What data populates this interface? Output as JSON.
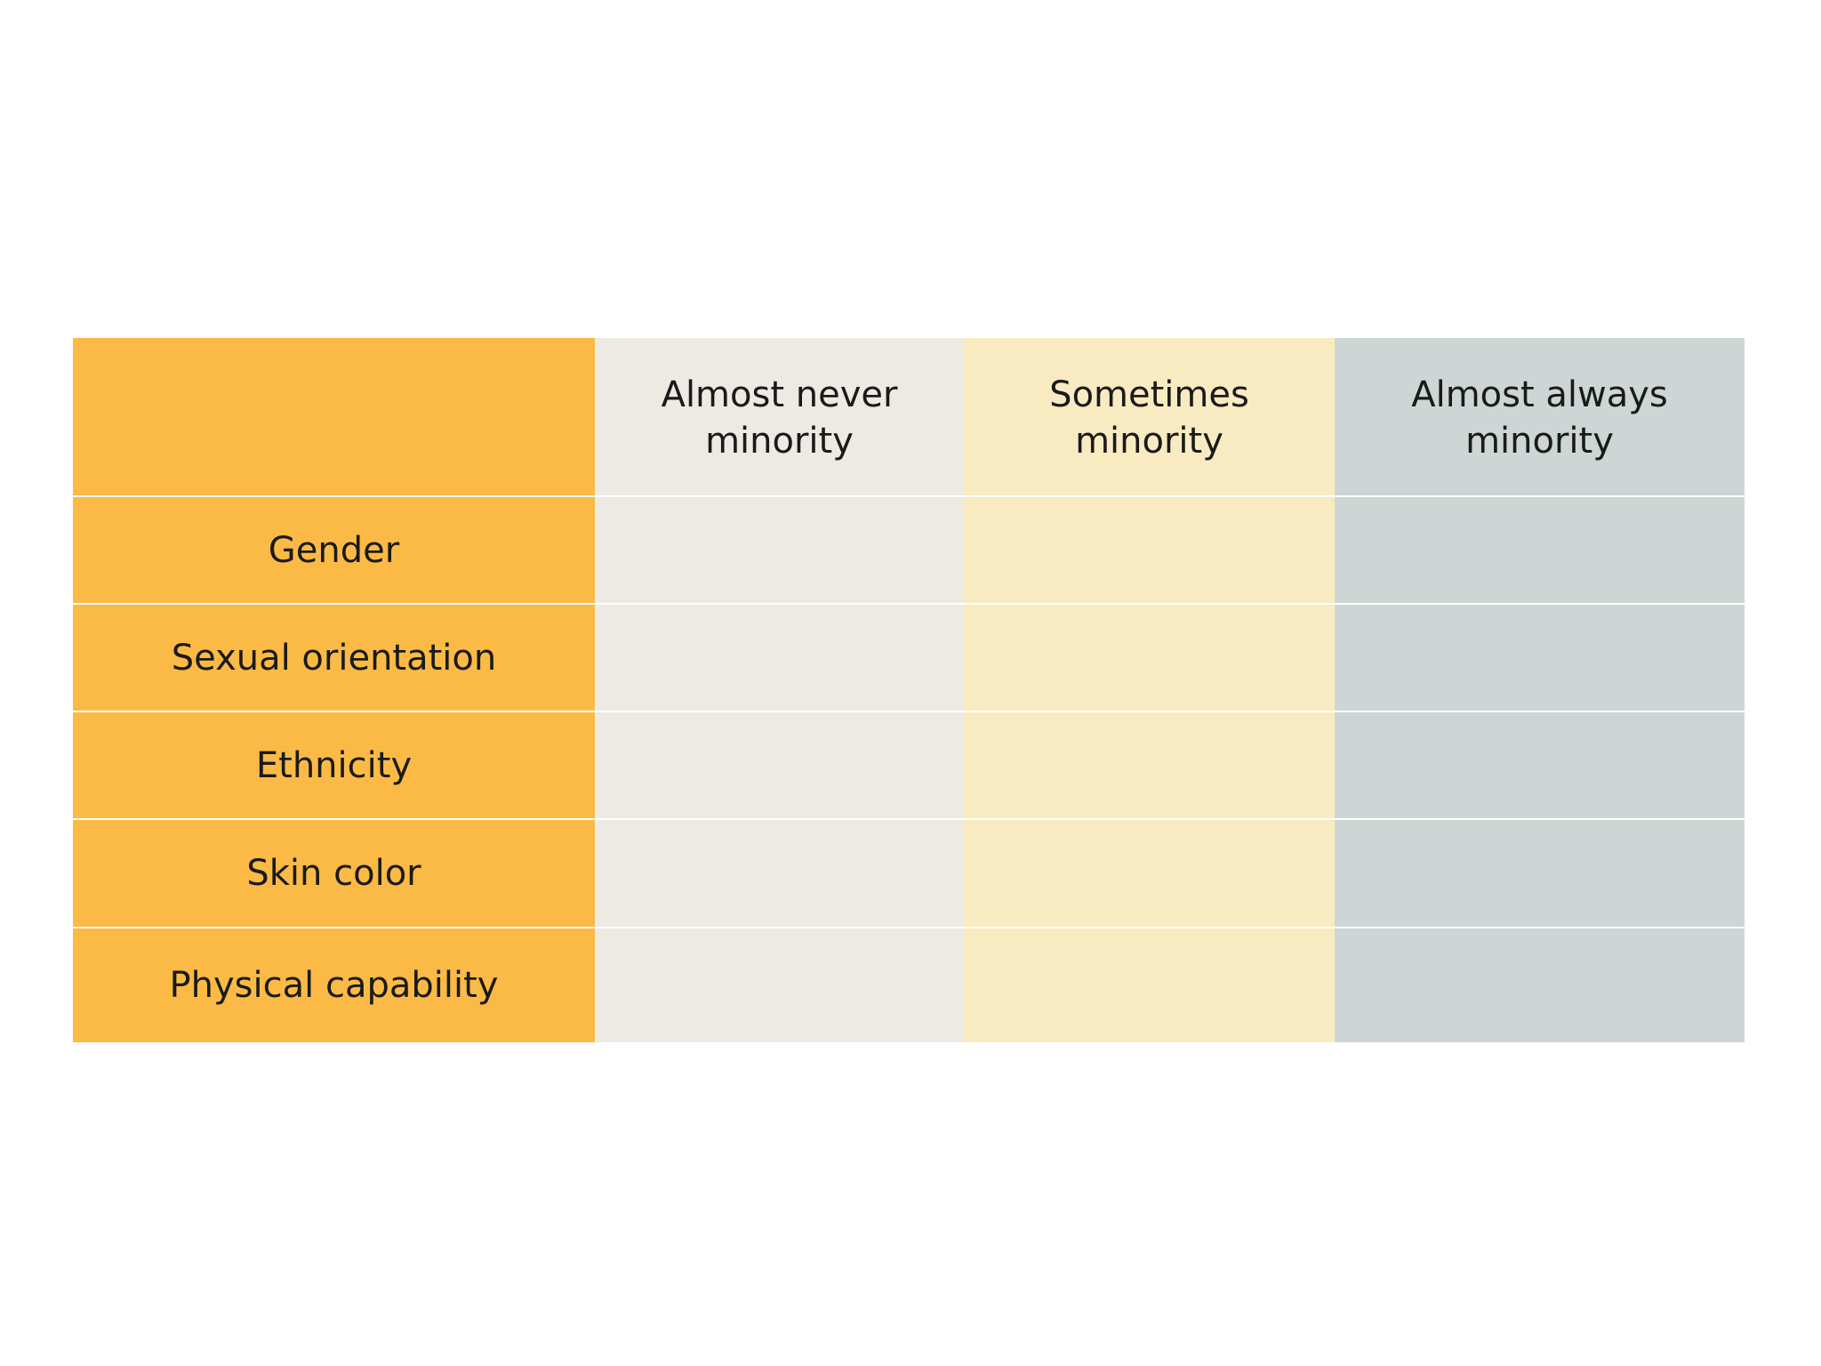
{
  "table": {
    "columns": [
      "Almost never minority",
      "Sometimes minority",
      "Almost always minority"
    ],
    "rows": [
      "Gender",
      "Sexual orientation",
      "Ethnicity",
      "Skin color",
      "Physical capability"
    ]
  }
}
